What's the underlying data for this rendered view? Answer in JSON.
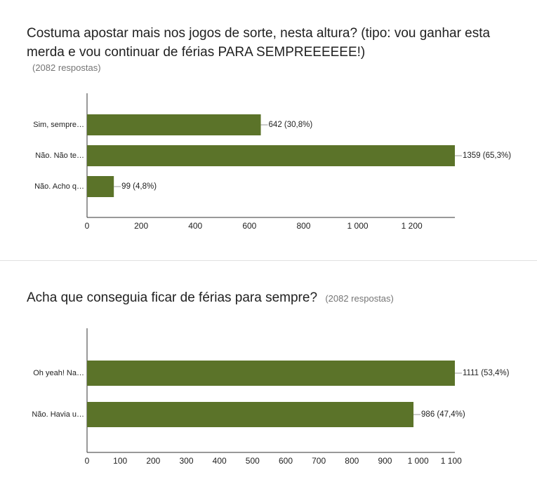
{
  "chart_data": [
    {
      "type": "bar",
      "orientation": "horizontal",
      "title": "Costuma apostar mais nos jogos de sorte, nesta altura? (tipo: vou ganhar esta merda e vou continuar de férias PARA SEMPREEEEEE!)",
      "subtitle": "(2082 respostas)",
      "categories": [
        "Sim, sempre…",
        "Não. Não te…",
        "Não. Acho q…"
      ],
      "values": [
        642,
        1359,
        99
      ],
      "value_labels": [
        "642 (30,8%)",
        "1359 (65,3%)",
        "99 (4,8%)"
      ],
      "color": "#5b7329",
      "xlim": [
        0,
        1359
      ],
      "xticks": [
        0,
        200,
        400,
        600,
        800,
        {
          "value": 1000,
          "label": "1 000"
        },
        {
          "value": 1200,
          "label": "1 200"
        }
      ],
      "grid": false
    },
    {
      "type": "bar",
      "orientation": "horizontal",
      "title": "Acha que conseguia ficar de férias para sempre?",
      "subtitle": "(2082 respostas)",
      "categories": [
        "Oh yeah! Na…",
        "Não. Havia u…"
      ],
      "values": [
        1111,
        986
      ],
      "value_labels": [
        "1111 (53,4%)",
        "986 (47,4%)"
      ],
      "color": "#5b7329",
      "xlim": [
        0,
        1111
      ],
      "xticks": [
        0,
        100,
        200,
        300,
        400,
        500,
        600,
        700,
        800,
        900,
        {
          "value": 1000,
          "label": "1 000"
        },
        {
          "value": 1100,
          "label": "1 100"
        }
      ],
      "grid": false
    }
  ]
}
